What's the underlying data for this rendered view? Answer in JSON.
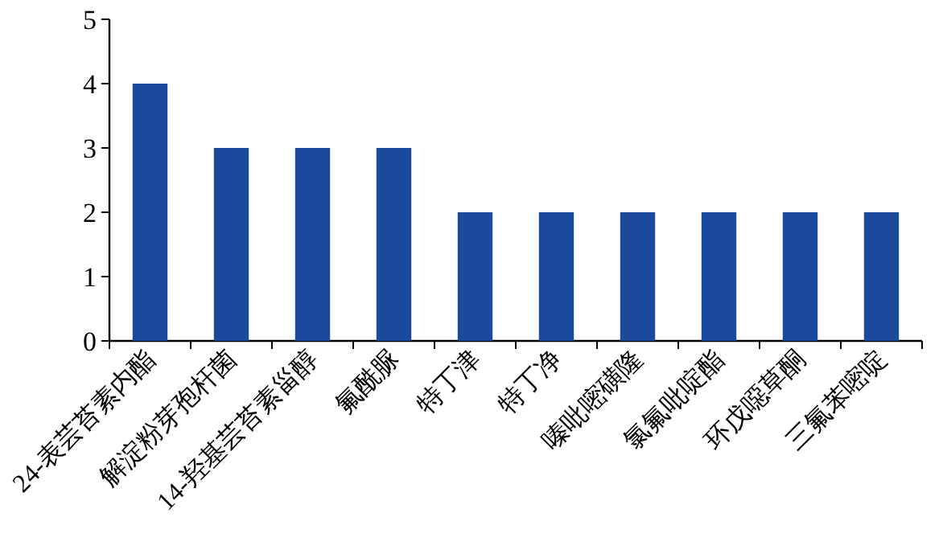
{
  "chart_data": {
    "type": "bar",
    "categories": [
      "24-表芸苔素内酯",
      "解淀粉芽孢杆菌",
      "14-羟基芸苔素甾醇",
      "氟酰脲",
      "特丁津",
      "特丁净",
      "嗪吡嘧磺隆",
      "氯氟吡啶酯",
      "环戊噁草酮",
      "三氟苯嘧啶"
    ],
    "values": [
      4,
      3,
      3,
      3,
      2,
      2,
      2,
      2,
      2,
      2
    ],
    "color": "#1b4a9c",
    "ylim": [
      0,
      5
    ],
    "yticks": [
      0,
      1,
      2,
      3,
      4,
      5
    ],
    "grid": false
  }
}
